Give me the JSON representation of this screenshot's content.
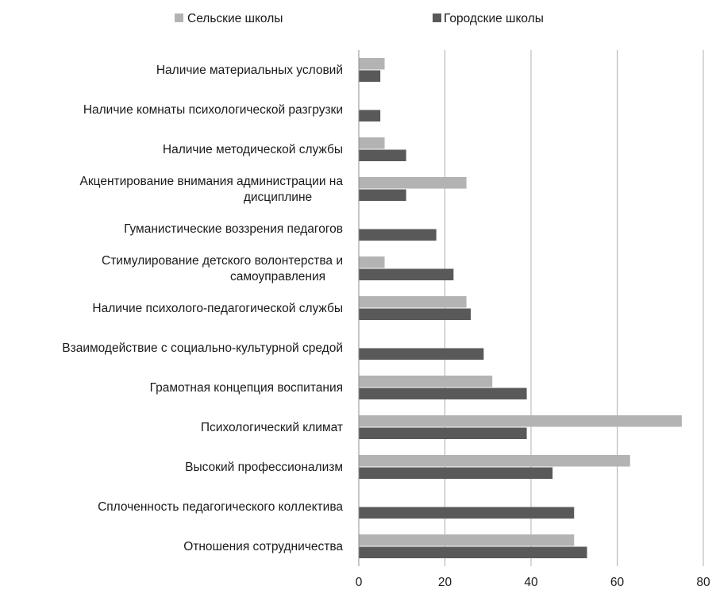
{
  "chart_data": {
    "type": "bar",
    "orientation": "horizontal",
    "categories": [
      [
        "Наличие материальных условий"
      ],
      [
        "Наличие комнаты психологической разгрузки"
      ],
      [
        "Наличие методической службы"
      ],
      [
        "Акцентирование внимания администрации на",
        "дисциплине"
      ],
      [
        "Гуманистические воззрения педагогов"
      ],
      [
        "Стимулирование детского волонтерства и",
        "самоуправления"
      ],
      [
        "Наличие психолого-педагогической службы"
      ],
      [
        "Взаимодействие с социально-культурной средой"
      ],
      [
        "Грамотная концепция воспитания"
      ],
      [
        "Психологический климат"
      ],
      [
        "Высокий профессионализм"
      ],
      [
        "Сплоченность педагогического коллектива"
      ],
      [
        "Отношения сотрудничества"
      ]
    ],
    "series": [
      {
        "name": "Сельские школы",
        "color": "#b3b3b3",
        "values": [
          6,
          0,
          6,
          25,
          0,
          6,
          25,
          0,
          31,
          75,
          63,
          0,
          50
        ]
      },
      {
        "name": "Городские школы",
        "color": "#595959",
        "values": [
          5,
          5,
          11,
          11,
          18,
          22,
          26,
          29,
          39,
          39,
          45,
          50,
          53
        ]
      }
    ],
    "xlim": [
      0,
      80
    ],
    "xticks": [
      "0",
      "20",
      "40",
      "60",
      "80"
    ],
    "grid": true,
    "legend_position": "top"
  }
}
